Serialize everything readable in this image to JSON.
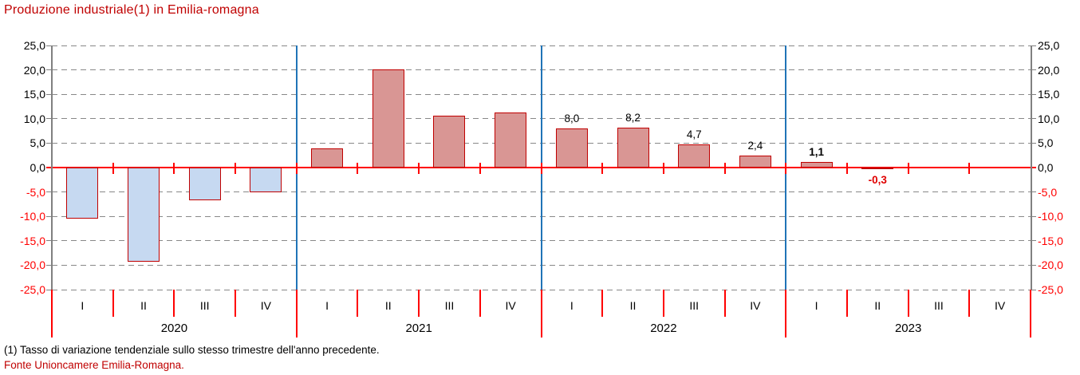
{
  "title": "Produzione industriale(1) in Emilia-romagna",
  "footnotes": {
    "note": "(1) Tasso di variazione tendenziale sullo stesso trimestre dell'anno precedente.",
    "source": "Fonte Unioncamere Emilia-Romagna."
  },
  "colors": {
    "title_red": "#C00000",
    "axis_red": "#FF0000",
    "grid_gray": "#888888",
    "spine_gray": "#808080",
    "separator_blue": "#2074B7",
    "bar_border": "#C00000",
    "fill_blue": "#C6D9F1",
    "fill_rose": "#D99694",
    "neg_label_red": "#E00000"
  },
  "chart_data": {
    "type": "bar",
    "title": "Produzione industriale(1) in Emilia-romagna",
    "xlabel": "",
    "ylabel": "",
    "ylim": [
      -25,
      25
    ],
    "ytick_step": 5,
    "grid": "horizontal-dashed",
    "legend": null,
    "ytick_labels": [
      "25,0",
      "20,0",
      "15,0",
      "10,0",
      "5,0",
      "0,0",
      "-5,0",
      "-10,0",
      "-15,0",
      "-20,0",
      "-25,0"
    ],
    "quarter_labels": [
      "I",
      "II",
      "III",
      "IV"
    ],
    "years": [
      {
        "year": "2020",
        "fill": "fill_blue",
        "values": [
          -10.4,
          -19.3,
          -6.7,
          -5.1
        ],
        "data_labels": [
          null,
          null,
          null,
          null
        ],
        "labels_bold": false
      },
      {
        "year": "2021",
        "fill": "fill_rose",
        "values": [
          4.0,
          20.1,
          10.7,
          11.3
        ],
        "data_labels": [
          null,
          null,
          null,
          null
        ],
        "labels_bold": false
      },
      {
        "year": "2022",
        "fill": "fill_rose",
        "values": [
          8.0,
          8.2,
          4.7,
          2.4
        ],
        "data_labels": [
          "8,0",
          "8,2",
          "4,7",
          "2,4"
        ],
        "labels_bold": false
      },
      {
        "year": "2023",
        "fill": "fill_rose",
        "values": [
          1.1,
          -0.3,
          null,
          null
        ],
        "data_labels": [
          "1,1",
          "-0,3",
          null,
          null
        ],
        "labels_bold": true
      }
    ]
  }
}
